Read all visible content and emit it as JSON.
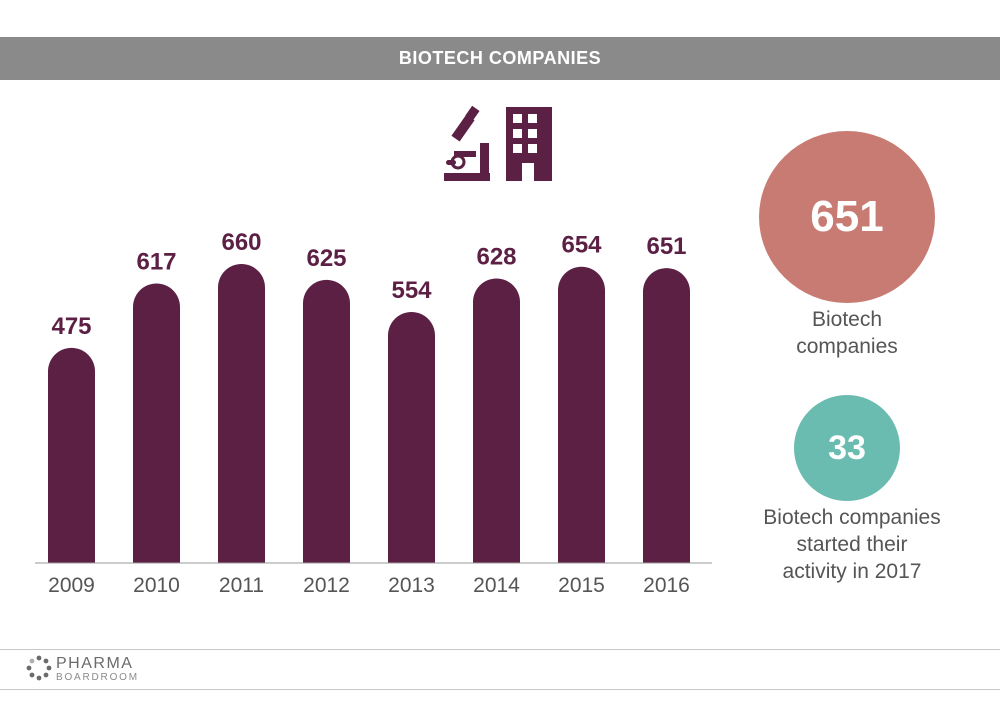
{
  "banner": {
    "title": "BIOTECH COMPANIES"
  },
  "colors": {
    "bar": "#5c2044",
    "banner": "#8a8a8a",
    "circle_primary": "#c87b72",
    "circle_secondary": "#6bbcb0"
  },
  "icons": [
    "microscope-icon",
    "building-icon"
  ],
  "chart_data": {
    "type": "bar",
    "categories": [
      "2009",
      "2010",
      "2011",
      "2012",
      "2013",
      "2014",
      "2015",
      "2016"
    ],
    "values": [
      475,
      617,
      660,
      625,
      554,
      628,
      654,
      651
    ],
    "title": "",
    "xlabel": "",
    "ylabel": "",
    "ylim": [
      0,
      720
    ],
    "grid": false,
    "data_labels": true
  },
  "stats": [
    {
      "value": "651",
      "caption_lines": [
        "Biotech",
        "companies"
      ]
    },
    {
      "value": "33",
      "caption_lines": [
        "Biotech companies",
        "started their",
        "activity in 2017"
      ]
    }
  ],
  "logo": {
    "line1": "PHARMA",
    "line2": "BOARDROOM"
  }
}
